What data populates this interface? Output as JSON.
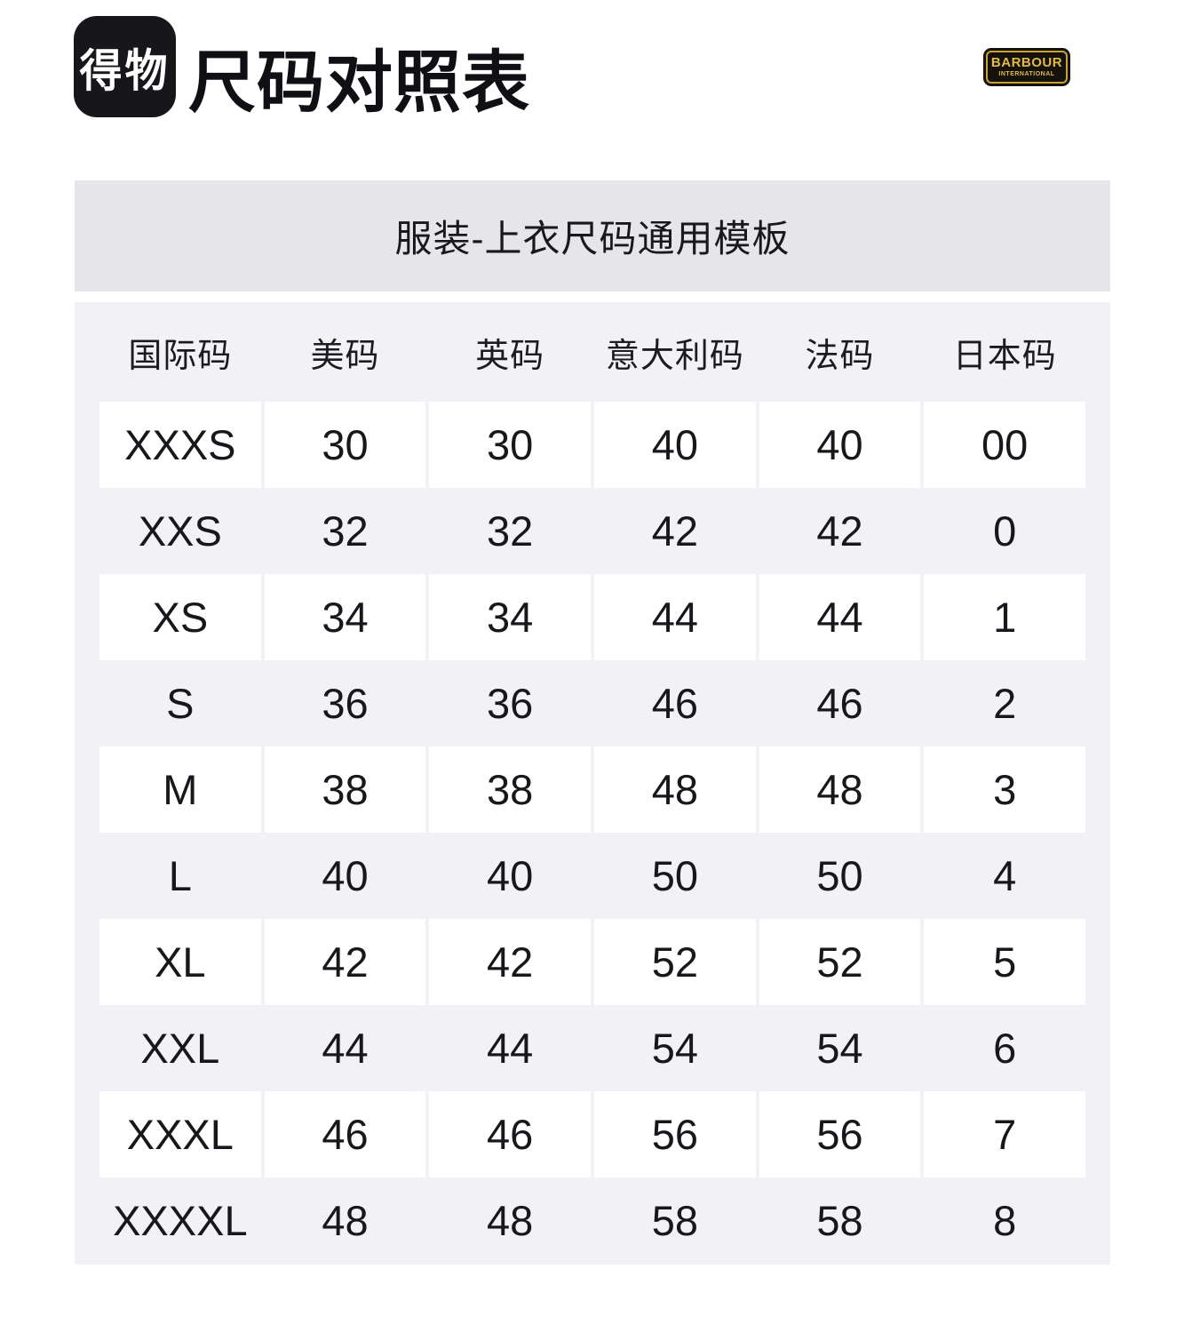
{
  "header": {
    "logo_text": "得物",
    "title": "尺码对照表",
    "brand_badge": {
      "line1": "BARBOUR",
      "line2": "INTERNATIONAL",
      "text_color": "#e3b94b",
      "bg_color": "#14120b"
    }
  },
  "banner": {
    "title": "服装-上衣尺码通用模板",
    "bg_color": "#e5e5ea"
  },
  "table": {
    "columns": [
      "国际码",
      "美码",
      "英码",
      "意大利码",
      "法码",
      "日本码"
    ],
    "rows": [
      [
        "XXXS",
        "30",
        "30",
        "40",
        "40",
        "00"
      ],
      [
        "XXS",
        "32",
        "32",
        "42",
        "42",
        "0"
      ],
      [
        "XS",
        "34",
        "34",
        "44",
        "44",
        "1"
      ],
      [
        "S",
        "36",
        "36",
        "46",
        "46",
        "2"
      ],
      [
        "M",
        "38",
        "38",
        "48",
        "48",
        "3"
      ],
      [
        "L",
        "40",
        "40",
        "50",
        "50",
        "4"
      ],
      [
        "XL",
        "42",
        "42",
        "52",
        "52",
        "5"
      ],
      [
        "XXL",
        "44",
        "44",
        "54",
        "54",
        "6"
      ],
      [
        "XXXL",
        "46",
        "46",
        "56",
        "56",
        "7"
      ],
      [
        "XXXXL",
        "48",
        "48",
        "58",
        "58",
        "8"
      ]
    ],
    "container_bg": "#f2f2f6",
    "alt_row_bg": "#ffffff"
  }
}
